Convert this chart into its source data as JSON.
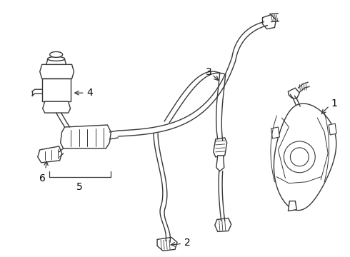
{
  "bg_color": "#ffffff",
  "line_color": "#383838",
  "label_color": "#000000",
  "figsize": [
    4.9,
    3.6
  ],
  "dpi": 100
}
